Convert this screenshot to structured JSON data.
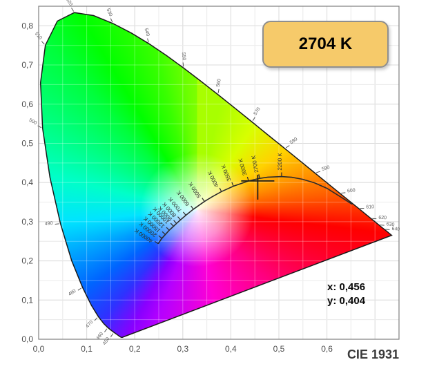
{
  "badge": {
    "label": "2704 K"
  },
  "readout": {
    "x_label": "x: 0,456",
    "y_label": "y: 0,404"
  },
  "footer": {
    "title": "CIE 1931"
  },
  "colors": {
    "badge_fill": "#f6ca6a",
    "badge_border": "#8f8f8f",
    "plot_border": "#7f7f7f",
    "grid_minor": "#e2e2e2",
    "grid_major": "#cccccc",
    "grid_over": "rgba(255,255,255,0.30)",
    "axis_text": "#4d4d4d",
    "spectral_outline": "#1a1a1a",
    "planckian_stroke": "#2b2b2b",
    "wavelength_text": "#5c5c5c",
    "temperature_text": "#2e2e2e",
    "crosshair": "#1f1f1f",
    "white_point": [
      0.33,
      0.33
    ],
    "conic_stops": [
      [
        12,
        "#a8ff00"
      ],
      [
        34,
        "#d8ff00"
      ],
      [
        56,
        "#ffd200"
      ],
      [
        73,
        "#ff9100"
      ],
      [
        84,
        "#ff5a00"
      ],
      [
        97,
        "#ff0000"
      ],
      [
        135,
        "#ff0080"
      ],
      [
        170,
        "#ff00d4"
      ],
      [
        200,
        "#b400ff"
      ],
      [
        209,
        "#8800ff"
      ],
      [
        221,
        "#2e32ff"
      ],
      [
        235,
        "#0064ff"
      ],
      [
        250,
        "#00a0ff"
      ],
      [
        265,
        "#00e4ff"
      ],
      [
        283,
        "#00ffc8"
      ],
      [
        298,
        "#00ff8a"
      ],
      [
        318,
        "#00ff3c"
      ],
      [
        329,
        "#00ff00"
      ],
      [
        345,
        "#39ff00"
      ],
      [
        356,
        "#70ff00"
      ],
      [
        372,
        "#a8ff00"
      ]
    ]
  },
  "chart_data": {
    "type": "scatter",
    "title": "CIE 1931",
    "xlabel": "x",
    "ylabel": "y",
    "xlim": [
      0,
      0.75
    ],
    "ylim": [
      0,
      0.85
    ],
    "grid_step": 0.05,
    "x_ticks": [
      {
        "v": 0.0,
        "label": "0,0"
      },
      {
        "v": 0.1,
        "label": "0,1"
      },
      {
        "v": 0.2,
        "label": "0,2"
      },
      {
        "v": 0.3,
        "label": "0,3"
      },
      {
        "v": 0.4,
        "label": "0,4"
      },
      {
        "v": 0.5,
        "label": "0,5"
      },
      {
        "v": 0.6,
        "label": "0,6"
      }
    ],
    "y_ticks": [
      {
        "v": 0.0,
        "label": "0,0"
      },
      {
        "v": 0.1,
        "label": "0,1"
      },
      {
        "v": 0.2,
        "label": "0,2"
      },
      {
        "v": 0.3,
        "label": "0,3"
      },
      {
        "v": 0.4,
        "label": "0,4"
      },
      {
        "v": 0.5,
        "label": "0,5"
      },
      {
        "v": 0.6,
        "label": "0,6"
      },
      {
        "v": 0.7,
        "label": "0,7"
      },
      {
        "v": 0.8,
        "label": "0,8"
      }
    ],
    "point": {
      "x": 0.456,
      "y": 0.404,
      "cct_label": "2704 K"
    },
    "spectral_locus": [
      [
        380,
        0.1741,
        0.005
      ],
      [
        390,
        0.1738,
        0.0049
      ],
      [
        400,
        0.1733,
        0.0048
      ],
      [
        410,
        0.1726,
        0.0048
      ],
      [
        420,
        0.1714,
        0.0051
      ],
      [
        430,
        0.1689,
        0.0069
      ],
      [
        440,
        0.1644,
        0.0109
      ],
      [
        450,
        0.1566,
        0.0177
      ],
      [
        455,
        0.151,
        0.0227
      ],
      [
        460,
        0.144,
        0.0297
      ],
      [
        465,
        0.1355,
        0.0399
      ],
      [
        470,
        0.1241,
        0.0578
      ],
      [
        475,
        0.1096,
        0.0868
      ],
      [
        480,
        0.0913,
        0.1327
      ],
      [
        485,
        0.0687,
        0.2007
      ],
      [
        490,
        0.0454,
        0.295
      ],
      [
        495,
        0.0235,
        0.4127
      ],
      [
        500,
        0.0082,
        0.5384
      ],
      [
        505,
        0.0039,
        0.6548
      ],
      [
        510,
        0.0139,
        0.7502
      ],
      [
        515,
        0.0389,
        0.812
      ],
      [
        520,
        0.0743,
        0.8338
      ],
      [
        525,
        0.1142,
        0.8262
      ],
      [
        530,
        0.1547,
        0.8059
      ],
      [
        535,
        0.1929,
        0.7816
      ],
      [
        540,
        0.2296,
        0.7543
      ],
      [
        545,
        0.2658,
        0.7243
      ],
      [
        550,
        0.3016,
        0.6923
      ],
      [
        555,
        0.3373,
        0.6588
      ],
      [
        560,
        0.3731,
        0.6245
      ],
      [
        565,
        0.4087,
        0.5896
      ],
      [
        570,
        0.4441,
        0.5547
      ],
      [
        575,
        0.4784,
        0.5202
      ],
      [
        580,
        0.5125,
        0.4866
      ],
      [
        585,
        0.5448,
        0.4544
      ],
      [
        590,
        0.5752,
        0.4242
      ],
      [
        595,
        0.6029,
        0.3965
      ],
      [
        600,
        0.627,
        0.3725
      ],
      [
        605,
        0.6482,
        0.3514
      ],
      [
        610,
        0.6658,
        0.334
      ],
      [
        615,
        0.6801,
        0.3197
      ],
      [
        620,
        0.6915,
        0.3083
      ],
      [
        625,
        0.7006,
        0.2993
      ],
      [
        630,
        0.7079,
        0.292
      ],
      [
        635,
        0.714,
        0.2859
      ],
      [
        640,
        0.719,
        0.2809
      ],
      [
        650,
        0.726,
        0.274
      ],
      [
        660,
        0.73,
        0.27
      ],
      [
        680,
        0.7334,
        0.2666
      ],
      [
        700,
        0.7347,
        0.2653
      ]
    ],
    "wavelength_labels": [
      450,
      460,
      470,
      480,
      490,
      500,
      510,
      520,
      530,
      540,
      550,
      560,
      570,
      580,
      590,
      600,
      610,
      620,
      630,
      640
    ],
    "planckian_locus": [
      [
        40000,
        0.2487,
        0.2438
      ],
      [
        20000,
        0.2565,
        0.2577
      ],
      [
        15000,
        0.2636,
        0.2673
      ],
      [
        12000,
        0.2719,
        0.2782
      ],
      [
        10000,
        0.2807,
        0.2884
      ],
      [
        9000,
        0.2869,
        0.2956
      ],
      [
        8000,
        0.2952,
        0.3048
      ],
      [
        7000,
        0.3064,
        0.3166
      ],
      [
        6000,
        0.3221,
        0.3318
      ],
      [
        5000,
        0.3451,
        0.3516
      ],
      [
        4500,
        0.3608,
        0.3635
      ],
      [
        4000,
        0.3805,
        0.3768
      ],
      [
        3500,
        0.4053,
        0.3907
      ],
      [
        3000,
        0.4369,
        0.4041
      ],
      [
        2700,
        0.4599,
        0.4106
      ],
      [
        2500,
        0.477,
        0.4137
      ],
      [
        2200,
        0.5056,
        0.4152
      ],
      [
        2000,
        0.5267,
        0.4133
      ],
      [
        1800,
        0.5494,
        0.4082
      ],
      [
        1600,
        0.574,
        0.3992
      ],
      [
        1400,
        0.6002,
        0.3852
      ],
      [
        1200,
        0.627,
        0.3645
      ],
      [
        1000,
        0.6528,
        0.3444
      ]
    ],
    "temperature_labels": [
      40000,
      20000,
      15000,
      12000,
      10000,
      9000,
      8000,
      7000,
      6000,
      5000,
      4000,
      3500,
      3000,
      2700,
      2200
    ]
  }
}
